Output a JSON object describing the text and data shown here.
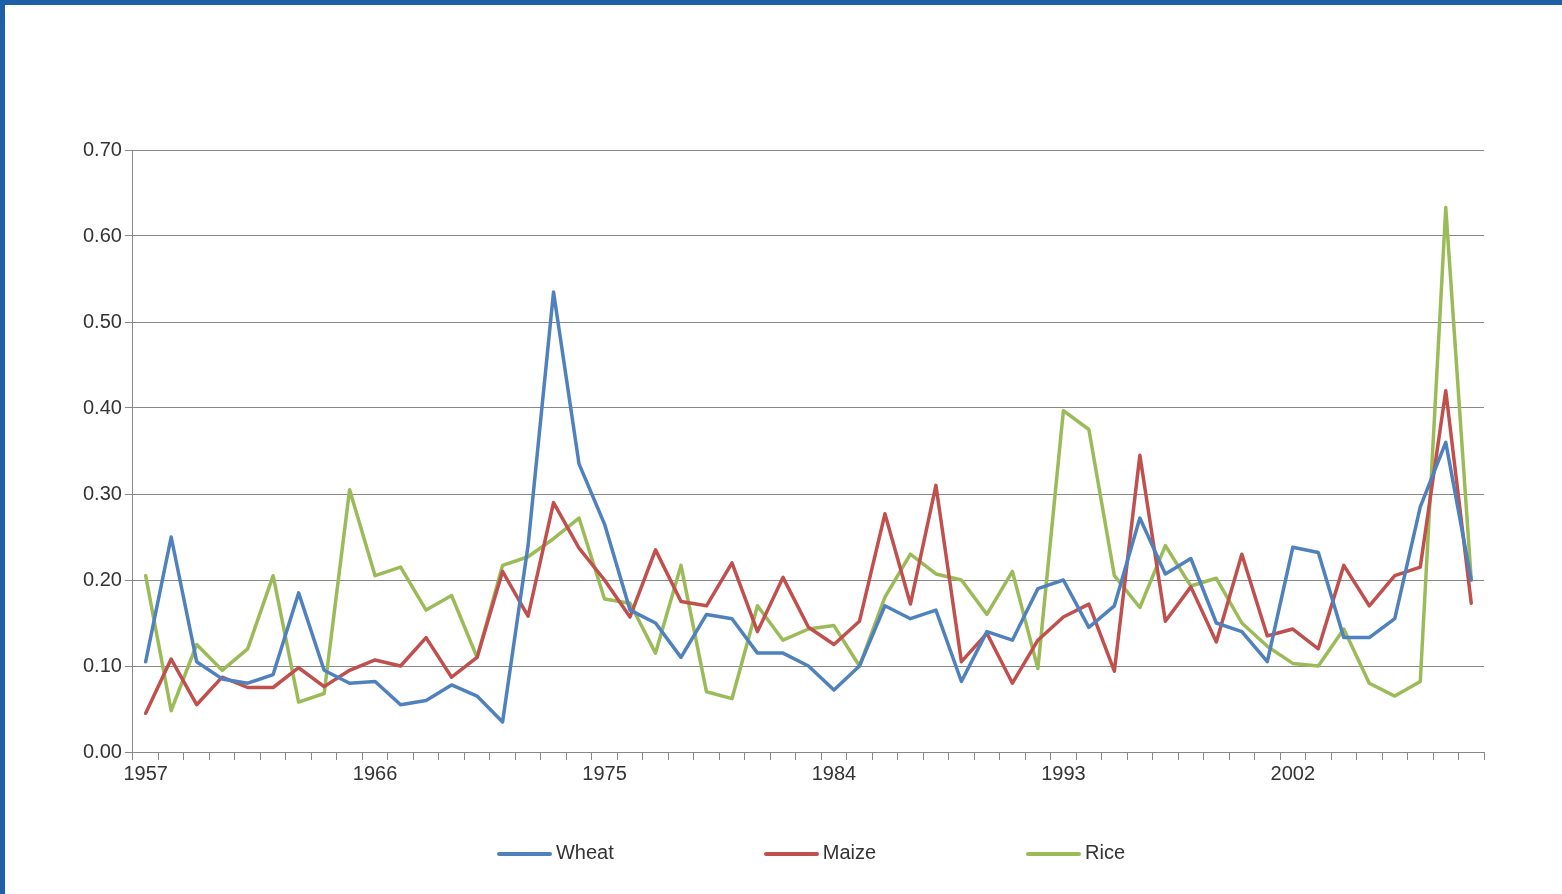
{
  "chart_data": {
    "type": "line",
    "categories": [
      "1957",
      null,
      null,
      null,
      null,
      null,
      null,
      null,
      null,
      "1966",
      null,
      null,
      null,
      null,
      null,
      null,
      null,
      null,
      "1975",
      null,
      null,
      null,
      null,
      null,
      null,
      null,
      null,
      "1984",
      null,
      null,
      null,
      null,
      null,
      null,
      null,
      null,
      "1993",
      null,
      null,
      null,
      null,
      null,
      null,
      null,
      null,
      "2002",
      null,
      null,
      null,
      null,
      null,
      null,
      null
    ],
    "series": [
      {
        "name": "Wheat",
        "color": "#4f81bd",
        "values": [
          0.105,
          0.25,
          0.105,
          0.085,
          0.08,
          0.09,
          0.185,
          0.095,
          0.08,
          0.082,
          0.055,
          0.06,
          0.078,
          0.065,
          0.035,
          0.24,
          0.535,
          0.335,
          0.265,
          0.165,
          0.15,
          0.11,
          0.16,
          0.155,
          0.115,
          0.115,
          0.1,
          0.072,
          0.1,
          0.17,
          0.155,
          0.165,
          0.082,
          0.14,
          0.13,
          0.19,
          0.2,
          0.145,
          0.17,
          0.272,
          0.207,
          0.225,
          0.15,
          0.14,
          0.105,
          0.238,
          0.232,
          0.133,
          0.133,
          0.155,
          0.285,
          0.36,
          0.2
        ]
      },
      {
        "name": "Maize",
        "color": "#c0504d",
        "values": [
          0.045,
          0.108,
          0.055,
          0.087,
          0.075,
          0.075,
          0.098,
          0.076,
          0.095,
          0.107,
          0.1,
          0.133,
          0.087,
          0.11,
          0.21,
          0.158,
          0.29,
          0.237,
          0.2,
          0.157,
          0.235,
          0.175,
          0.17,
          0.22,
          0.14,
          0.203,
          0.145,
          0.125,
          0.152,
          0.277,
          0.172,
          0.31,
          0.105,
          0.138,
          0.08,
          0.13,
          0.157,
          0.172,
          0.094,
          0.345,
          0.152,
          0.192,
          0.128,
          0.23,
          0.135,
          0.143,
          0.12,
          0.217,
          0.17,
          0.205,
          0.215,
          0.42,
          0.173
        ]
      },
      {
        "name": "Rice",
        "color": "#9bbb59",
        "values": [
          0.205,
          0.048,
          0.125,
          0.095,
          0.12,
          0.205,
          0.058,
          0.068,
          0.305,
          0.205,
          0.215,
          0.165,
          0.182,
          0.11,
          0.217,
          0.227,
          0.248,
          0.272,
          0.178,
          0.173,
          0.115,
          0.217,
          0.07,
          0.062,
          0.17,
          0.13,
          0.143,
          0.147,
          0.1,
          0.18,
          0.23,
          0.207,
          0.2,
          0.16,
          0.21,
          0.097,
          0.397,
          0.375,
          0.205,
          0.168,
          0.24,
          0.193,
          0.202,
          0.15,
          0.123,
          0.103,
          0.1,
          0.143,
          0.08,
          0.065,
          0.082,
          0.633,
          0.2
        ]
      }
    ],
    "ylim": [
      0,
      0.7
    ],
    "yticks": [
      {
        "value": 0,
        "label": "0.00"
      },
      {
        "value": 0.1,
        "label": "0.10"
      },
      {
        "value": 0.2,
        "label": "0.20"
      },
      {
        "value": 0.3,
        "label": "0.30"
      },
      {
        "value": 0.4,
        "label": "0.40"
      },
      {
        "value": 0.5,
        "label": "0.50"
      },
      {
        "value": 0.6,
        "label": "0.60"
      },
      {
        "value": 0.7,
        "label": "0.70"
      }
    ],
    "grid": "y",
    "legend": "bottom",
    "marker": "none",
    "line_style": "solid"
  }
}
